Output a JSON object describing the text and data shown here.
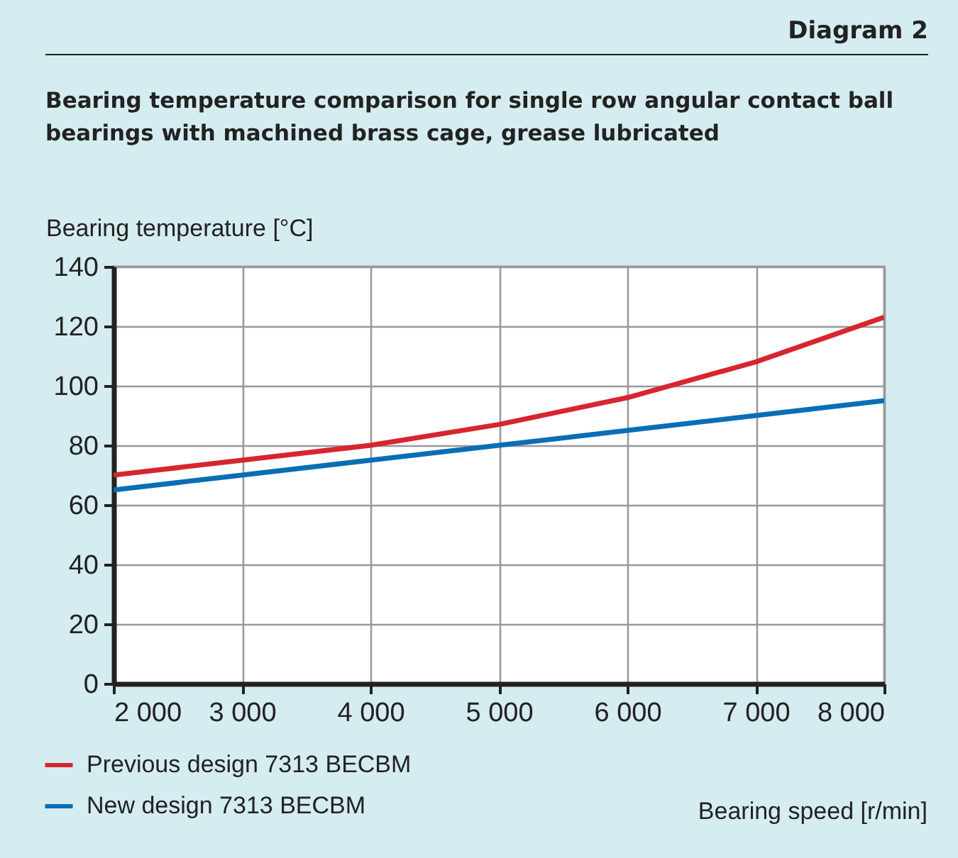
{
  "chart_data": {
    "type": "line",
    "title": "Bearing temperature comparison for single row angular contact ball bearings with machined brass cage, grease lubricated",
    "annotations": [
      "Diagram 2"
    ],
    "xlabel": "Bearing speed [r/min]",
    "ylabel": "Bearing temperature [°C]",
    "x": [
      2000,
      3000,
      4000,
      5000,
      6000,
      7000,
      8000
    ],
    "series": [
      {
        "name": "Previous design 7313 BECBM",
        "color": "#d7262e",
        "values": [
          70,
          75,
          80,
          87,
          96,
          108,
          123
        ]
      },
      {
        "name": "New design 7313 BECBM",
        "color": "#0a6eb4",
        "values": [
          65,
          70,
          75,
          80,
          85,
          90,
          95
        ]
      }
    ],
    "xlim": [
      2000,
      8000
    ],
    "xticks": [
      {
        "value": 2000,
        "label": "2 000"
      },
      {
        "value": 3000,
        "label": "3 000"
      },
      {
        "value": 4000,
        "label": "4 000"
      },
      {
        "value": 5000,
        "label": "5 000"
      },
      {
        "value": 6000,
        "label": "6 000"
      },
      {
        "value": 7000,
        "label": "7 000"
      },
      {
        "value": 8000,
        "label": "8 000"
      }
    ],
    "ylim": [
      0,
      140
    ],
    "yticks": [
      0,
      20,
      40,
      60,
      80,
      100,
      120,
      140
    ],
    "grid": true,
    "legend": "bottom left",
    "line_style": "solid",
    "marker": "none"
  }
}
